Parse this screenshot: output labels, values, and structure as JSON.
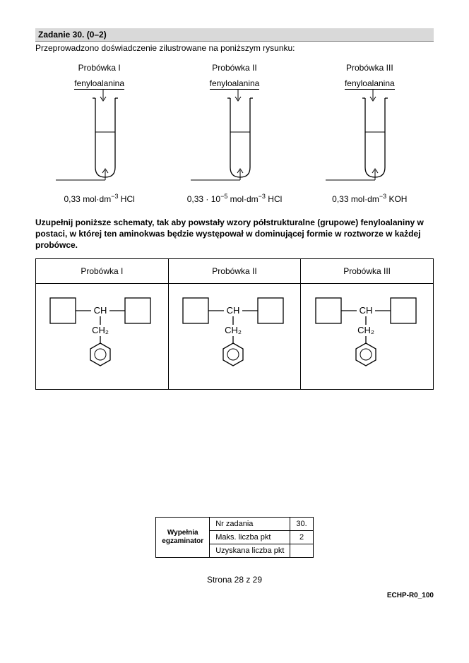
{
  "task": {
    "header": "Zadanie 30. (0–2)",
    "intro": "Przeprowadzono doświadczenie zilustrowane na poniższym rysunku:"
  },
  "tubes": [
    {
      "title": "Probówka I",
      "reagent": "fenyloalanina",
      "solution_html": "0,33 mol&middot;dm<sup>&minus;3</sup> HCl"
    },
    {
      "title": "Probówka II",
      "reagent": "fenyloalanina",
      "solution_html": "0,33 &middot; 10<sup>&minus;5</sup> mol&middot;dm<sup>&minus;3</sup> HCl"
    },
    {
      "title": "Probówka III",
      "reagent": "fenyloalanina",
      "solution_html": "0,33 mol&middot;dm<sup>&minus;3</sup> KOH"
    }
  ],
  "instruction": "Uzupełnij poniższe schematy, tak aby powstały wzory półstrukturalne (grupowe) fenyloalaniny w postaci, w której ten aminokwas będzie występował w dominującej formie w roztworze w każdej probówce.",
  "answer_table": {
    "headers": [
      "Probówka I",
      "Probówka II",
      "Probówka III"
    ],
    "ch_label": "CH",
    "ch2_label": "CH₂"
  },
  "grading": {
    "filler": "Wypełnia egzaminator",
    "rows": [
      {
        "label": "Nr zadania",
        "value": "30."
      },
      {
        "label": "Maks. liczba pkt",
        "value": "2"
      },
      {
        "label": "Uzyskana liczba pkt",
        "value": ""
      }
    ]
  },
  "footer": {
    "page": "Strona 28 z 29",
    "code": "ECHP-R0_100"
  }
}
